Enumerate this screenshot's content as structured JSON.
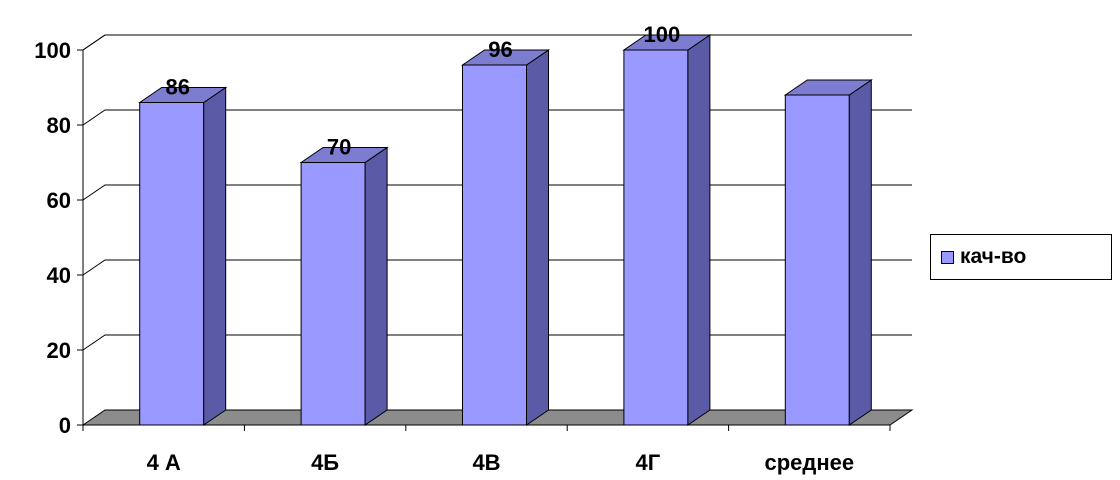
{
  "chart_data": {
    "type": "bar",
    "title": "",
    "xlabel": "",
    "ylabel": "",
    "categories": [
      "4 А",
      "4Б",
      "4В",
      "4Г",
      "среднее"
    ],
    "series": [
      {
        "name": "кач-во",
        "values": [
          86,
          70,
          96,
          100,
          88
        ],
        "data_labels": [
          "86",
          "70",
          "96",
          "100",
          ""
        ]
      }
    ],
    "ylim": [
      0,
      100
    ],
    "yticks": [
      0,
      20,
      40,
      60,
      80,
      100
    ],
    "grid": true,
    "legend": "right",
    "style": "3d-column",
    "colors": {
      "bar_front": "#9999ff",
      "bar_side": "#5a5aa6",
      "bar_top": "#7c7cd1",
      "floor": "#8c8c8c",
      "edge": "#000000"
    }
  }
}
